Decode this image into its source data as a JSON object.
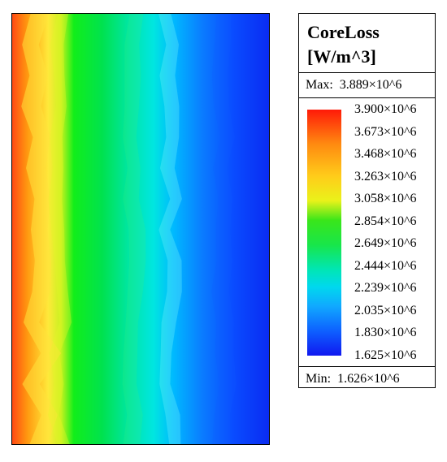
{
  "chart_data": {
    "type": "heatmap",
    "title": "CoreLoss",
    "unit": "[W/m^3]",
    "max_label": "Max:",
    "max_value": "3.889×10^6",
    "min_label": "Min:",
    "min_value": "1.626×10^6",
    "colorbar_ticks": [
      "3.900×10^6",
      "3.673×10^6",
      "3.468×10^6",
      "3.263×10^6",
      "3.058×10^6",
      "2.854×10^6",
      "2.649×10^6",
      "2.444×10^6",
      "2.239×10^6",
      "2.035×10^6",
      "1.830×10^6",
      "1.625×10^6"
    ],
    "colorbar_range": [
      1625000,
      3900000
    ],
    "data_range": [
      1626000,
      3889000
    ],
    "field_trend": "decreasing from left to right",
    "colormap": [
      "#ff1a08",
      "#ffcc1a",
      "#3ae61a",
      "#00d8ee",
      "#1018f0"
    ]
  }
}
